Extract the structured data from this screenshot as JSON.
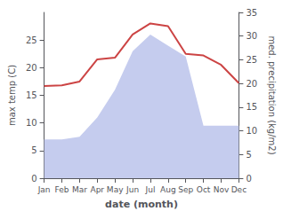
{
  "chart_data": {
    "type": "line",
    "xlabel": "date (month)",
    "ylabel": "max temp (C)",
    "y2label": "med. precipitation (kg/m2)",
    "categories": [
      "Jan",
      "Feb",
      "Mar",
      "Apr",
      "May",
      "Jun",
      "Jul",
      "Aug",
      "Sep",
      "Oct",
      "Nov",
      "Dec"
    ],
    "series": [
      {
        "type": "area",
        "color": "#c5ccee",
        "values": [
          7.0,
          7.0,
          7.5,
          11.0,
          16.0,
          23.0,
          26.0,
          24.0,
          22.0,
          9.5,
          9.5,
          9.5
        ]
      },
      {
        "type": "line",
        "color": "#cc4444",
        "values": [
          16.7,
          16.8,
          17.5,
          21.5,
          21.8,
          26.0,
          28.0,
          27.5,
          22.5,
          22.2,
          20.5,
          17.2
        ]
      }
    ],
    "ylim": [
      0,
      30
    ],
    "yticks": [
      0,
      5,
      10,
      15,
      20,
      25
    ],
    "y2lim": [
      0,
      35
    ],
    "y2ticks": [
      0,
      5,
      10,
      15,
      20,
      25,
      30,
      35
    ],
    "grid": false
  }
}
